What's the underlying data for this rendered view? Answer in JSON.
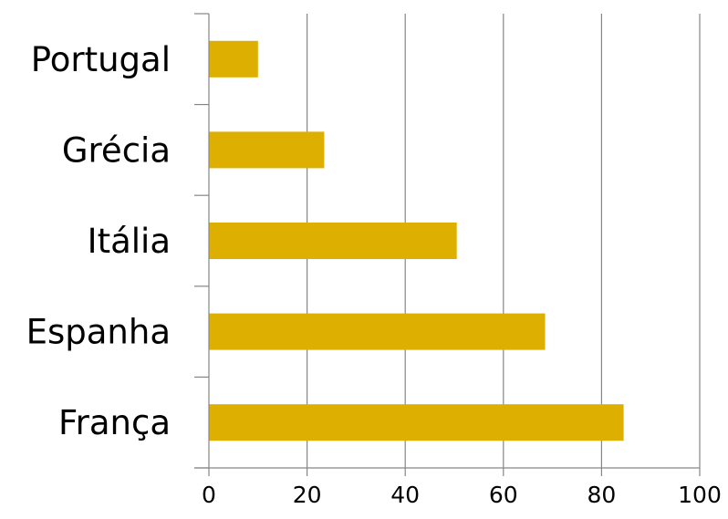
{
  "chart_data": {
    "type": "bar",
    "orientation": "horizontal",
    "categories": [
      "Portugal",
      "Grécia",
      "Itália",
      "Espanha",
      "França"
    ],
    "values": [
      10,
      23.5,
      50.5,
      68.5,
      84.5
    ],
    "xlim": [
      0,
      100
    ],
    "x_ticks": [
      "0",
      "20",
      "40",
      "60",
      "80",
      "100"
    ],
    "grid": "vertical gridlines",
    "legend": "none",
    "bar_color": "#DDAF00",
    "grid_color": "#868686"
  }
}
